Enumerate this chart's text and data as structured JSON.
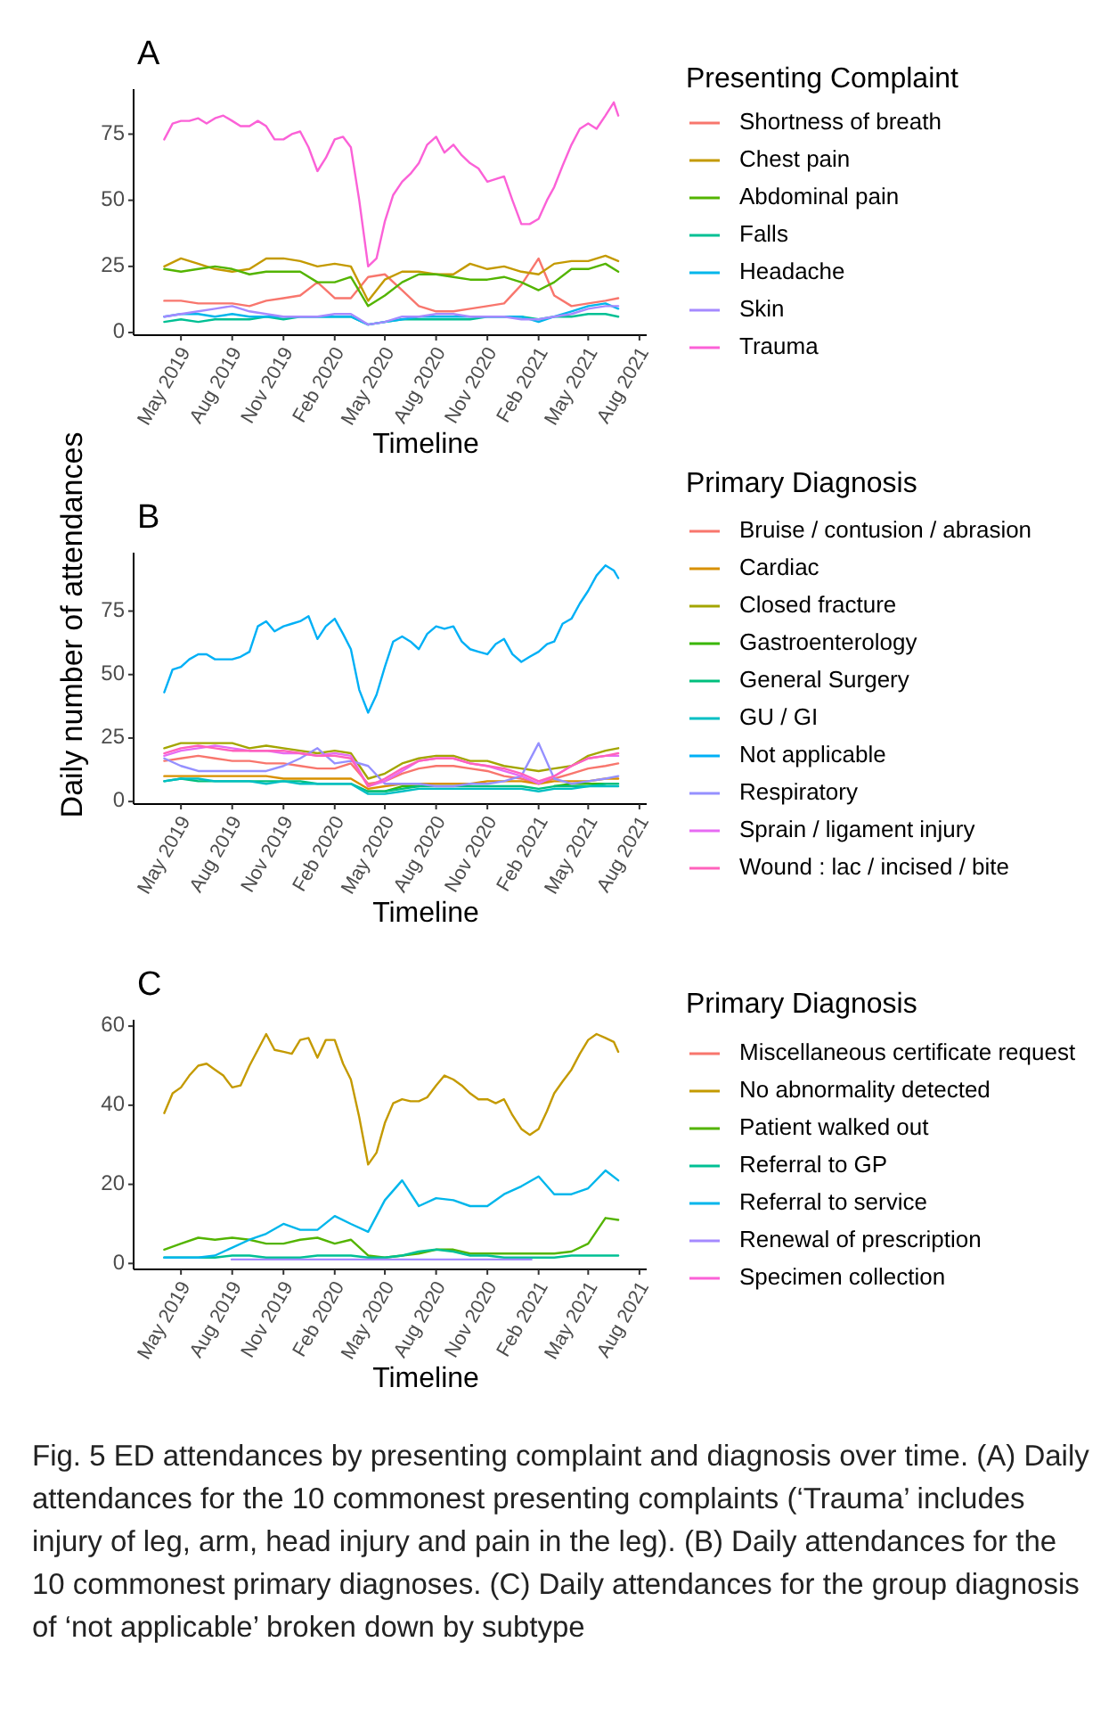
{
  "chart_data": [
    {
      "type": "line",
      "title": "A",
      "xlabel": "Timeline",
      "legend_title": "Presenting Complaint",
      "legend": "right",
      "xlim": [
        "2019-02-05",
        "2021-08-14"
      ],
      "ylim": [
        -1,
        92
      ],
      "yticks": [
        0,
        25,
        50,
        75
      ],
      "xticks": [
        {
          "value": "2019-05-01",
          "label": "May 2019"
        },
        {
          "value": "2019-08-01",
          "label": "Aug 2019"
        },
        {
          "value": "2019-11-01",
          "label": "Nov 2019"
        },
        {
          "value": "2020-02-01",
          "label": "Feb 2020"
        },
        {
          "value": "2020-05-01",
          "label": "May 2020"
        },
        {
          "value": "2020-08-01",
          "label": "Aug 2020"
        },
        {
          "value": "2020-11-01",
          "label": "Nov 2020"
        },
        {
          "value": "2021-02-01",
          "label": "Feb 2021"
        },
        {
          "value": "2021-05-01",
          "label": "May 2021"
        },
        {
          "value": "2021-08-01",
          "label": "Aug 2021"
        }
      ],
      "x": [
        "2019-04-01",
        "2019-05-01",
        "2019-06-01",
        "2019-07-01",
        "2019-08-01",
        "2019-09-01",
        "2019-10-01",
        "2019-11-01",
        "2019-12-01",
        "2020-01-01",
        "2020-02-01",
        "2020-03-01",
        "2020-04-01",
        "2020-05-01",
        "2020-06-01",
        "2020-07-01",
        "2020-08-01",
        "2020-09-01",
        "2020-10-01",
        "2020-11-01",
        "2020-12-01",
        "2021-01-01",
        "2021-02-01",
        "2021-03-01",
        "2021-04-01",
        "2021-05-01",
        "2021-06-01",
        "2021-06-24"
      ],
      "series": [
        {
          "name": "Shortness of breath",
          "color": "#f8766d",
          "values": [
            12,
            12,
            11,
            11,
            11,
            10,
            12,
            13,
            14,
            19,
            13,
            13,
            21,
            22,
            16,
            10,
            8,
            8,
            9,
            10,
            11,
            18,
            28,
            14,
            10,
            11,
            12,
            13
          ]
        },
        {
          "name": "Chest pain",
          "color": "#c49a00",
          "values": [
            25,
            28,
            26,
            24,
            23,
            24,
            28,
            28,
            27,
            25,
            26,
            25,
            12,
            20,
            23,
            23,
            22,
            22,
            26,
            24,
            25,
            23,
            22,
            26,
            27,
            27,
            29,
            27
          ]
        },
        {
          "name": "Abdominal pain",
          "color": "#53b400",
          "values": [
            24,
            23,
            24,
            25,
            24,
            22,
            23,
            23,
            23,
            19,
            19,
            21,
            10,
            14,
            19,
            22,
            22,
            21,
            20,
            20,
            21,
            19,
            16,
            19,
            24,
            24,
            26,
            23
          ]
        },
        {
          "name": "Falls",
          "color": "#00c094",
          "values": [
            4,
            5,
            4,
            5,
            5,
            5,
            6,
            5,
            6,
            6,
            6,
            6,
            3,
            4,
            5,
            5,
            5,
            5,
            5,
            6,
            6,
            6,
            5,
            6,
            6,
            7,
            7,
            6
          ]
        },
        {
          "name": "Headache",
          "color": "#00b6eb",
          "values": [
            6,
            7,
            7,
            6,
            7,
            6,
            6,
            6,
            6,
            6,
            6,
            6,
            3,
            4,
            5,
            6,
            6,
            6,
            6,
            6,
            6,
            6,
            4,
            6,
            8,
            10,
            11,
            9
          ]
        },
        {
          "name": "Skin",
          "color": "#a58aff",
          "values": [
            6,
            7,
            8,
            9,
            10,
            8,
            7,
            6,
            6,
            6,
            7,
            7,
            3,
            4,
            6,
            6,
            7,
            7,
            6,
            6,
            6,
            5,
            5,
            6,
            7,
            9,
            10,
            10
          ]
        },
        {
          "name": "Trauma",
          "color": "#fb61d7",
          "x": [
            "2019-04-01",
            "2019-04-16",
            "2019-05-01",
            "2019-05-16",
            "2019-06-01",
            "2019-06-16",
            "2019-07-01",
            "2019-07-16",
            "2019-08-01",
            "2019-08-16",
            "2019-09-01",
            "2019-09-16",
            "2019-10-01",
            "2019-10-16",
            "2019-11-01",
            "2019-11-16",
            "2019-12-01",
            "2019-12-16",
            "2020-01-01",
            "2020-01-16",
            "2020-02-01",
            "2020-02-16",
            "2020-03-01",
            "2020-03-16",
            "2020-04-01",
            "2020-04-16",
            "2020-05-01",
            "2020-05-16",
            "2020-06-01",
            "2020-06-16",
            "2020-07-01",
            "2020-07-16",
            "2020-08-01",
            "2020-08-16",
            "2020-09-01",
            "2020-09-16",
            "2020-10-01",
            "2020-10-16",
            "2020-11-01",
            "2020-11-16",
            "2020-12-01",
            "2020-12-16",
            "2021-01-01",
            "2021-01-16",
            "2021-02-01",
            "2021-02-16",
            "2021-03-01",
            "2021-03-16",
            "2021-04-01",
            "2021-04-16",
            "2021-05-01",
            "2021-05-16",
            "2021-06-01",
            "2021-06-16",
            "2021-06-24"
          ],
          "values": [
            73,
            79,
            80,
            80,
            81,
            79,
            81,
            82,
            80,
            78,
            78,
            80,
            78,
            73,
            73,
            75,
            76,
            70,
            61,
            66,
            73,
            74,
            70,
            50,
            25,
            28,
            42,
            52,
            57,
            60,
            64,
            71,
            74,
            68,
            71,
            67,
            64,
            62,
            57,
            58,
            59,
            50,
            41,
            41,
            43,
            50,
            55,
            63,
            71,
            77,
            79,
            77,
            82,
            87,
            82
          ]
        }
      ]
    },
    {
      "type": "line",
      "title": "B",
      "xlabel": "Timeline",
      "ylabel": "Daily number of attendances",
      "legend_title": "Primary Diagnosis",
      "legend": "right",
      "xlim": [
        "2019-02-05",
        "2021-08-14"
      ],
      "ylim": [
        -1,
        98
      ],
      "yticks": [
        0,
        25,
        50,
        75
      ],
      "xticks": [
        {
          "value": "2019-05-01",
          "label": "May 2019"
        },
        {
          "value": "2019-08-01",
          "label": "Aug 2019"
        },
        {
          "value": "2019-11-01",
          "label": "Nov 2019"
        },
        {
          "value": "2020-02-01",
          "label": "Feb 2020"
        },
        {
          "value": "2020-05-01",
          "label": "May 2020"
        },
        {
          "value": "2020-08-01",
          "label": "Aug 2020"
        },
        {
          "value": "2020-11-01",
          "label": "Nov 2020"
        },
        {
          "value": "2021-02-01",
          "label": "Feb 2021"
        },
        {
          "value": "2021-05-01",
          "label": "May 2021"
        },
        {
          "value": "2021-08-01",
          "label": "Aug 2021"
        }
      ],
      "x": [
        "2019-04-01",
        "2019-05-01",
        "2019-06-01",
        "2019-07-01",
        "2019-08-01",
        "2019-09-01",
        "2019-10-01",
        "2019-11-01",
        "2019-12-01",
        "2020-01-01",
        "2020-02-01",
        "2020-03-01",
        "2020-04-01",
        "2020-05-01",
        "2020-06-01",
        "2020-07-01",
        "2020-08-01",
        "2020-09-01",
        "2020-10-01",
        "2020-11-01",
        "2020-12-01",
        "2021-01-01",
        "2021-02-01",
        "2021-03-01",
        "2021-04-01",
        "2021-05-01",
        "2021-06-01",
        "2021-06-24"
      ],
      "series": [
        {
          "name": "Bruise / contusion / abrasion",
          "color": "#f8766d",
          "values": [
            16,
            17,
            18,
            17,
            16,
            16,
            15,
            15,
            14,
            13,
            13,
            15,
            7,
            8,
            11,
            13,
            14,
            14,
            13,
            12,
            10,
            9,
            7,
            9,
            11,
            13,
            14,
            15
          ]
        },
        {
          "name": "Cardiac",
          "color": "#d89000",
          "values": [
            10,
            10,
            10,
            10,
            10,
            10,
            10,
            9,
            9,
            9,
            9,
            9,
            5,
            6,
            7,
            7,
            7,
            7,
            7,
            8,
            8,
            8,
            7,
            8,
            8,
            8,
            9,
            9
          ]
        },
        {
          "name": "Closed fracture",
          "color": "#a3a500",
          "values": [
            21,
            23,
            23,
            23,
            23,
            21,
            22,
            21,
            20,
            19,
            20,
            19,
            9,
            11,
            15,
            17,
            18,
            18,
            16,
            16,
            14,
            13,
            12,
            13,
            14,
            18,
            20,
            21
          ]
        },
        {
          "name": "Gastroenterology",
          "color": "#39b600",
          "values": [
            null,
            null,
            null,
            null,
            null,
            null,
            null,
            null,
            null,
            null,
            null,
            null,
            4,
            4,
            6,
            6,
            null,
            null,
            null,
            null,
            null,
            null,
            null,
            6,
            7,
            7,
            7,
            null
          ]
        },
        {
          "name": "General Surgery",
          "color": "#00bf7d",
          "values": [
            8,
            9,
            8,
            8,
            8,
            8,
            8,
            8,
            8,
            7,
            7,
            7,
            4,
            4,
            5,
            6,
            6,
            6,
            6,
            6,
            6,
            6,
            5,
            6,
            6,
            6,
            7,
            7
          ]
        },
        {
          "name": "GU / GI",
          "color": "#00bfc4",
          "values": [
            8,
            9,
            9,
            8,
            8,
            8,
            7,
            8,
            7,
            7,
            7,
            7,
            3,
            3,
            4,
            5,
            5,
            5,
            5,
            5,
            5,
            5,
            4,
            5,
            5,
            6,
            6,
            6
          ]
        },
        {
          "name": "Not applicable",
          "color": "#00b0f6",
          "x": [
            "2019-04-01",
            "2019-04-16",
            "2019-05-01",
            "2019-05-16",
            "2019-06-01",
            "2019-06-16",
            "2019-07-01",
            "2019-07-16",
            "2019-08-01",
            "2019-08-16",
            "2019-09-01",
            "2019-09-16",
            "2019-10-01",
            "2019-10-16",
            "2019-11-01",
            "2019-11-16",
            "2019-12-01",
            "2019-12-16",
            "2020-01-01",
            "2020-01-16",
            "2020-02-01",
            "2020-02-16",
            "2020-03-01",
            "2020-03-16",
            "2020-04-01",
            "2020-04-16",
            "2020-05-01",
            "2020-05-16",
            "2020-06-01",
            "2020-06-16",
            "2020-07-01",
            "2020-07-16",
            "2020-08-01",
            "2020-08-16",
            "2020-09-01",
            "2020-09-16",
            "2020-10-01",
            "2020-10-16",
            "2020-11-01",
            "2020-11-16",
            "2020-12-01",
            "2020-12-16",
            "2021-01-01",
            "2021-01-16",
            "2021-02-01",
            "2021-02-16",
            "2021-03-01",
            "2021-03-16",
            "2021-04-01",
            "2021-04-16",
            "2021-05-01",
            "2021-05-16",
            "2021-06-01",
            "2021-06-16",
            "2021-06-24"
          ],
          "values": [
            43,
            52,
            53,
            56,
            58,
            58,
            56,
            56,
            56,
            57,
            59,
            69,
            71,
            67,
            69,
            70,
            71,
            73,
            64,
            69,
            72,
            66,
            60,
            44,
            35,
            42,
            53,
            63,
            65,
            63,
            60,
            66,
            69,
            68,
            69,
            63,
            60,
            59,
            58,
            62,
            64,
            58,
            55,
            57,
            59,
            62,
            63,
            70,
            72,
            78,
            83,
            89,
            93,
            91,
            88
          ]
        },
        {
          "name": "Respiratory",
          "color": "#9590ff",
          "values": [
            17,
            14,
            12,
            12,
            12,
            12,
            12,
            14,
            17,
            21,
            15,
            16,
            14,
            7,
            7,
            7,
            6,
            6,
            7,
            7,
            8,
            10,
            23,
            9,
            7,
            8,
            9,
            10
          ]
        },
        {
          "name": "Sprain / ligament injury",
          "color": "#e76bf3",
          "values": [
            18,
            20,
            21,
            22,
            21,
            20,
            20,
            19,
            19,
            18,
            19,
            18,
            6,
            8,
            12,
            16,
            17,
            17,
            15,
            14,
            12,
            10,
            7,
            10,
            14,
            17,
            18,
            18
          ]
        },
        {
          "name": "Wound : lac / incised / bite",
          "color": "#ff62bc",
          "values": [
            19,
            21,
            22,
            21,
            20,
            20,
            20,
            20,
            19,
            18,
            18,
            17,
            6,
            9,
            13,
            16,
            17,
            17,
            15,
            14,
            13,
            11,
            8,
            10,
            14,
            17,
            18,
            19
          ]
        }
      ]
    },
    {
      "type": "line",
      "title": "C",
      "xlabel": "Timeline",
      "legend_title": "Primary Diagnosis",
      "legend": "right",
      "xlim": [
        "2019-02-05",
        "2021-08-14"
      ],
      "ylim": [
        -1.5,
        61.6
      ],
      "yticks": [
        0,
        20,
        40,
        60
      ],
      "xticks": [
        {
          "value": "2019-05-01",
          "label": "May 2019"
        },
        {
          "value": "2019-08-01",
          "label": "Aug 2019"
        },
        {
          "value": "2019-11-01",
          "label": "Nov 2019"
        },
        {
          "value": "2020-02-01",
          "label": "Feb 2020"
        },
        {
          "value": "2020-05-01",
          "label": "May 2020"
        },
        {
          "value": "2020-08-01",
          "label": "Aug 2020"
        },
        {
          "value": "2020-11-01",
          "label": "Nov 2020"
        },
        {
          "value": "2021-02-01",
          "label": "Feb 2021"
        },
        {
          "value": "2021-05-01",
          "label": "May 2021"
        },
        {
          "value": "2021-08-01",
          "label": "Aug 2021"
        }
      ],
      "x": [
        "2019-04-01",
        "2019-05-01",
        "2019-06-01",
        "2019-07-01",
        "2019-08-01",
        "2019-09-01",
        "2019-10-01",
        "2019-11-01",
        "2019-12-01",
        "2020-01-01",
        "2020-02-01",
        "2020-03-01",
        "2020-04-01",
        "2020-05-01",
        "2020-06-01",
        "2020-07-01",
        "2020-08-01",
        "2020-09-01",
        "2020-10-01",
        "2020-11-01",
        "2020-12-01",
        "2021-01-01",
        "2021-02-01",
        "2021-03-01",
        "2021-04-01",
        "2021-05-01",
        "2021-06-01",
        "2021-06-24"
      ],
      "annotations": [
        "Fig. 5 ED attendances by presenting complaint and diagnosis over time. (A) Daily attendances for the 10 commonest presenting complaints (‘Trauma’ includes injury of leg, arm, head injury and pain in the leg). (B) Daily attendances for the 10 commonest primary diagnoses. (C) Daily attendances for the group diagnosis of ‘not applicable’ broken down by subtype"
      ],
      "series": [
        {
          "name": "Miscellaneous certificate request",
          "color": "#f8766d",
          "values": [
            null,
            null,
            null,
            null,
            null,
            null,
            null,
            null,
            null,
            null,
            null,
            null,
            null,
            null,
            null,
            null,
            null,
            null,
            null,
            null,
            null,
            null,
            null,
            null,
            null,
            null,
            null,
            null
          ]
        },
        {
          "name": "No abnormality detected",
          "color": "#c49a00",
          "x": [
            "2019-04-01",
            "2019-04-16",
            "2019-05-01",
            "2019-05-16",
            "2019-06-01",
            "2019-06-16",
            "2019-07-01",
            "2019-07-16",
            "2019-08-01",
            "2019-08-16",
            "2019-09-01",
            "2019-09-16",
            "2019-10-01",
            "2019-10-16",
            "2019-11-01",
            "2019-11-16",
            "2019-12-01",
            "2019-12-16",
            "2020-01-01",
            "2020-01-16",
            "2020-02-01",
            "2020-02-16",
            "2020-03-01",
            "2020-03-16",
            "2020-04-01",
            "2020-04-16",
            "2020-05-01",
            "2020-05-16",
            "2020-06-01",
            "2020-06-16",
            "2020-07-01",
            "2020-07-16",
            "2020-08-01",
            "2020-08-16",
            "2020-09-01",
            "2020-09-16",
            "2020-10-01",
            "2020-10-16",
            "2020-11-01",
            "2020-11-16",
            "2020-12-01",
            "2020-12-16",
            "2021-01-01",
            "2021-01-16",
            "2021-02-01",
            "2021-02-16",
            "2021-03-01",
            "2021-03-16",
            "2021-04-01",
            "2021-04-16",
            "2021-05-01",
            "2021-05-16",
            "2021-06-01",
            "2021-06-16",
            "2021-06-24"
          ],
          "values": [
            38,
            43,
            44.5,
            47.5,
            50,
            50.5,
            49,
            47.5,
            44.5,
            45,
            50,
            54,
            58,
            54,
            53.5,
            53,
            56.5,
            57,
            52,
            56.5,
            56.5,
            50.5,
            46.5,
            37,
            25,
            28,
            35.5,
            40.5,
            41.5,
            41,
            41,
            42,
            45,
            47.5,
            46.5,
            45,
            43,
            41.5,
            41.5,
            40.5,
            41.5,
            37.5,
            34,
            32.5,
            34,
            38.5,
            43,
            46,
            49,
            53,
            56.5,
            58,
            57,
            56,
            53.5
          ]
        },
        {
          "name": "Patient walked out",
          "color": "#53b400",
          "values": [
            3.5,
            5,
            6.5,
            6,
            6.5,
            6,
            5,
            5,
            6,
            6.5,
            5,
            6,
            2,
            1.5,
            2,
            2.5,
            3.5,
            3.5,
            2.5,
            2.5,
            2.5,
            2.5,
            2.5,
            2.5,
            3,
            5,
            11.5,
            11
          ]
        },
        {
          "name": "Referral to GP",
          "color": "#00c094",
          "values": [
            1.5,
            1.5,
            1.5,
            1.5,
            2,
            2,
            1.5,
            1.5,
            1.5,
            2,
            2,
            2,
            1.5,
            1.5,
            2,
            3,
            3.5,
            3,
            2,
            2,
            1.5,
            1.5,
            1.5,
            1.5,
            2,
            2,
            2,
            2
          ]
        },
        {
          "name": "Referral to service",
          "color": "#00b6eb",
          "values": [
            1.5,
            1.5,
            1.5,
            2,
            4,
            6,
            7.5,
            10,
            8.5,
            8.5,
            12,
            10,
            8,
            16,
            21,
            14.5,
            16.5,
            16,
            14.5,
            14.5,
            17.5,
            19.5,
            22,
            17.5,
            17.5,
            19,
            23.5,
            21
          ]
        },
        {
          "name": "Renewal of prescription",
          "color": "#a58aff",
          "x": [
            "2019-07-31",
            "2021-01-19"
          ],
          "values": [
            1,
            1
          ]
        },
        {
          "name": "Specimen collection",
          "color": "#fb61d7",
          "values": [
            null,
            null,
            null,
            null,
            null,
            null,
            null,
            null,
            null,
            null,
            null,
            null,
            null,
            null,
            null,
            null,
            null,
            null,
            null,
            null,
            null,
            null,
            null,
            null,
            null,
            null,
            null,
            null
          ]
        }
      ]
    }
  ]
}
